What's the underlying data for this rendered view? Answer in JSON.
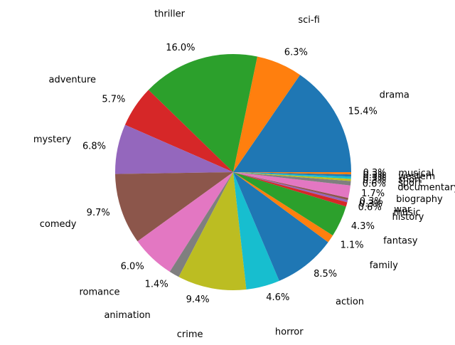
{
  "chart_data": {
    "type": "pie",
    "title": "",
    "slices": [
      {
        "label": "drama",
        "value": 15.4,
        "pct_label": "15.4%",
        "color": "#1f77b4"
      },
      {
        "label": "sci-fi",
        "value": 6.3,
        "pct_label": "6.3%",
        "color": "#ff7f0e"
      },
      {
        "label": "thriller",
        "value": 16.0,
        "pct_label": "16.0%",
        "color": "#2ca02c"
      },
      {
        "label": "adventure",
        "value": 5.7,
        "pct_label": "5.7%",
        "color": "#d62728"
      },
      {
        "label": "mystery",
        "value": 6.8,
        "pct_label": "6.8%",
        "color": "#9467bd"
      },
      {
        "label": "comedy",
        "value": 9.7,
        "pct_label": "9.7%",
        "color": "#8c564b"
      },
      {
        "label": "romance",
        "value": 6.0,
        "pct_label": "6.0%",
        "color": "#e377c2"
      },
      {
        "label": "animation",
        "value": 1.4,
        "pct_label": "1.4%",
        "color": "#7f7f7f"
      },
      {
        "label": "crime",
        "value": 9.4,
        "pct_label": "9.4%",
        "color": "#bcbd22"
      },
      {
        "label": "horror",
        "value": 4.6,
        "pct_label": "4.6%",
        "color": "#17becf"
      },
      {
        "label": "action",
        "value": 8.5,
        "pct_label": "8.5%",
        "color": "#1f77b4"
      },
      {
        "label": "family",
        "value": 1.1,
        "pct_label": "1.1%",
        "color": "#ff7f0e"
      },
      {
        "label": "fantasy",
        "value": 4.3,
        "pct_label": "4.3%",
        "color": "#2ca02c"
      },
      {
        "label": "history",
        "value": 0.6,
        "pct_label": "0.6%",
        "color": "#d62728"
      },
      {
        "label": "music",
        "value": 0.3,
        "pct_label": "0.3%",
        "color": "#9467bd"
      },
      {
        "label": "war",
        "value": 0.3,
        "pct_label": "0.3%",
        "color": "#8c564b"
      },
      {
        "label": "biography",
        "value": 1.7,
        "pct_label": "1.7%",
        "color": "#e377c2"
      },
      {
        "label": "documentary",
        "value": 0.6,
        "pct_label": "0.6%",
        "color": "#7f7f7f"
      },
      {
        "label": "sport",
        "value": 0.3,
        "pct_label": "0.3%",
        "color": "#bcbd22"
      },
      {
        "label": "short",
        "value": 0.3,
        "pct_label": "0.3%",
        "color": "#17becf"
      },
      {
        "label": "western",
        "value": 0.3,
        "pct_label": "0.3%",
        "color": "#1f77b4"
      },
      {
        "label": "musical",
        "value": 0.3,
        "pct_label": "0.3%",
        "color": "#ff7f0e"
      }
    ],
    "start_angle_deg": 0,
    "direction": "counterclockwise",
    "legend": "none"
  }
}
